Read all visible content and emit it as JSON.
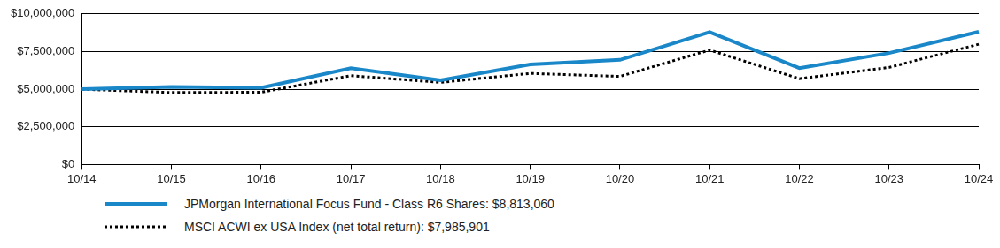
{
  "chart_data": {
    "type": "line",
    "categories": [
      "10/14",
      "10/15",
      "10/16",
      "10/17",
      "10/18",
      "10/19",
      "10/20",
      "10/21",
      "10/22",
      "10/23",
      "10/24"
    ],
    "series": [
      {
        "name": "JPMorgan International Focus Fund - Class R6 Shares: $8,813,060",
        "color": "#1a87c9",
        "line_style": "solid",
        "marker": "none",
        "values": [
          5000000,
          5150000,
          5100000,
          6400000,
          5600000,
          6650000,
          6950000,
          8800000,
          6400000,
          7400000,
          8813060
        ]
      },
      {
        "name": "MSCI ACWI ex USA Index (net total return): $7,985,901",
        "color": "#000000",
        "line_style": "dotted",
        "marker": "none",
        "values": [
          5000000,
          4780000,
          4800000,
          5900000,
          5450000,
          6050000,
          5850000,
          7600000,
          5700000,
          6450000,
          7985901
        ]
      }
    ],
    "ylim": [
      0,
      10000000
    ],
    "yticks": [
      {
        "value": 0,
        "label": "$0"
      },
      {
        "value": 2500000,
        "label": "$2,500,000"
      },
      {
        "value": 5000000,
        "label": "$5,000,000"
      },
      {
        "value": 7500000,
        "label": "$7,500,000"
      },
      {
        "value": 10000000,
        "label": "$10,000,000"
      }
    ],
    "grid": true,
    "legend": "bottom-left"
  }
}
